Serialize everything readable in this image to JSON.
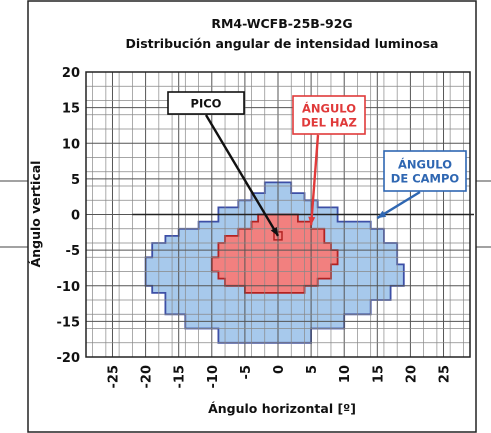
{
  "chart_data": {
    "type": "heatmap",
    "title": "RM4-WCFB-25B-92G",
    "subtitle": "Distribución angular de intensidad luminosa",
    "xlabel": "Ángulo horizontal [º]",
    "ylabel": "Ángulo vertical",
    "xlim": [
      -29,
      29
    ],
    "ylim": [
      -20,
      20
    ],
    "x_ticks": [
      -25,
      -20,
      -15,
      -10,
      -5,
      0,
      5,
      10,
      15,
      20,
      25
    ],
    "y_ticks": [
      20,
      15,
      10,
      5,
      0,
      -5,
      -10,
      -15,
      -20
    ],
    "grid": true,
    "regions": [
      {
        "name": "ÁNGULO DE CAMPO",
        "color": "#a7c9ec",
        "edge_color": "#3d4fa6",
        "outline_deg": [
          [
            -9,
            -1
          ],
          [
            -9,
            1
          ],
          [
            -6,
            1
          ],
          [
            -6,
            2
          ],
          [
            -4,
            2
          ],
          [
            -4,
            3
          ],
          [
            -2,
            3
          ],
          [
            -2,
            4.5
          ],
          [
            2,
            4.5
          ],
          [
            2,
            3
          ],
          [
            4,
            3
          ],
          [
            4,
            2
          ],
          [
            6,
            2
          ],
          [
            6,
            1
          ],
          [
            9,
            1
          ],
          [
            9,
            -1
          ],
          [
            14,
            -1
          ],
          [
            14,
            -2
          ],
          [
            16,
            -2
          ],
          [
            16,
            -4
          ],
          [
            18,
            -4
          ],
          [
            18,
            -7
          ],
          [
            19,
            -7
          ],
          [
            19,
            -10
          ],
          [
            17,
            -10
          ],
          [
            17,
            -12
          ],
          [
            14,
            -12
          ],
          [
            14,
            -14
          ],
          [
            10,
            -14
          ],
          [
            10,
            -16
          ],
          [
            5,
            -16
          ],
          [
            5,
            -18
          ],
          [
            -9,
            -18
          ],
          [
            -9,
            -16
          ],
          [
            -14,
            -16
          ],
          [
            -14,
            -14
          ],
          [
            -17,
            -14
          ],
          [
            -17,
            -11
          ],
          [
            -19,
            -11
          ],
          [
            -19,
            -10
          ],
          [
            -20,
            -10
          ],
          [
            -20,
            -6
          ],
          [
            -19,
            -6
          ],
          [
            -19,
            -4
          ],
          [
            -17,
            -4
          ],
          [
            -17,
            -3
          ],
          [
            -15,
            -3
          ],
          [
            -15,
            -2
          ],
          [
            -12,
            -2
          ],
          [
            -12,
            -1
          ]
        ]
      },
      {
        "name": "ÁNGULO DEL HAZ",
        "color": "#f2807f",
        "edge_color": "#b32222",
        "outline_deg": [
          [
            -3,
            -1
          ],
          [
            -3,
            0
          ],
          [
            3,
            0
          ],
          [
            3,
            -1
          ],
          [
            5,
            -1
          ],
          [
            5,
            -2
          ],
          [
            7,
            -2
          ],
          [
            7,
            -4
          ],
          [
            8,
            -4
          ],
          [
            8,
            -5
          ],
          [
            9,
            -5
          ],
          [
            9,
            -7
          ],
          [
            8,
            -7
          ],
          [
            8,
            -9
          ],
          [
            6,
            -9
          ],
          [
            6,
            -10
          ],
          [
            4,
            -10
          ],
          [
            4,
            -11
          ],
          [
            -5,
            -11
          ],
          [
            -5,
            -10
          ],
          [
            -8,
            -10
          ],
          [
            -8,
            -9
          ],
          [
            -9,
            -9
          ],
          [
            -9,
            -8
          ],
          [
            -10,
            -8
          ],
          [
            -10,
            -6
          ],
          [
            -9,
            -6
          ],
          [
            -9,
            -4
          ],
          [
            -8,
            -4
          ],
          [
            -8,
            -3
          ],
          [
            -6,
            -3
          ],
          [
            -6,
            -2
          ],
          [
            -4,
            -2
          ],
          [
            -4,
            -1
          ]
        ]
      }
    ],
    "peak": {
      "name": "PICO",
      "x": 0,
      "y": -3
    },
    "annotations": [
      {
        "text": [
          "PICO"
        ],
        "color": "#111111",
        "border": "#111111",
        "target": [
          0,
          -3
        ]
      },
      {
        "text": [
          "ÁNGULO",
          "DEL HAZ"
        ],
        "color": "#e03a3a",
        "border": "#e03a3a",
        "target": [
          5,
          -1.5
        ]
      },
      {
        "text": [
          "ÁNGULO",
          "DE CAMPO"
        ],
        "color": "#2f67b2",
        "border": "#2f67b2",
        "target": [
          15,
          -0.5
        ]
      }
    ]
  }
}
